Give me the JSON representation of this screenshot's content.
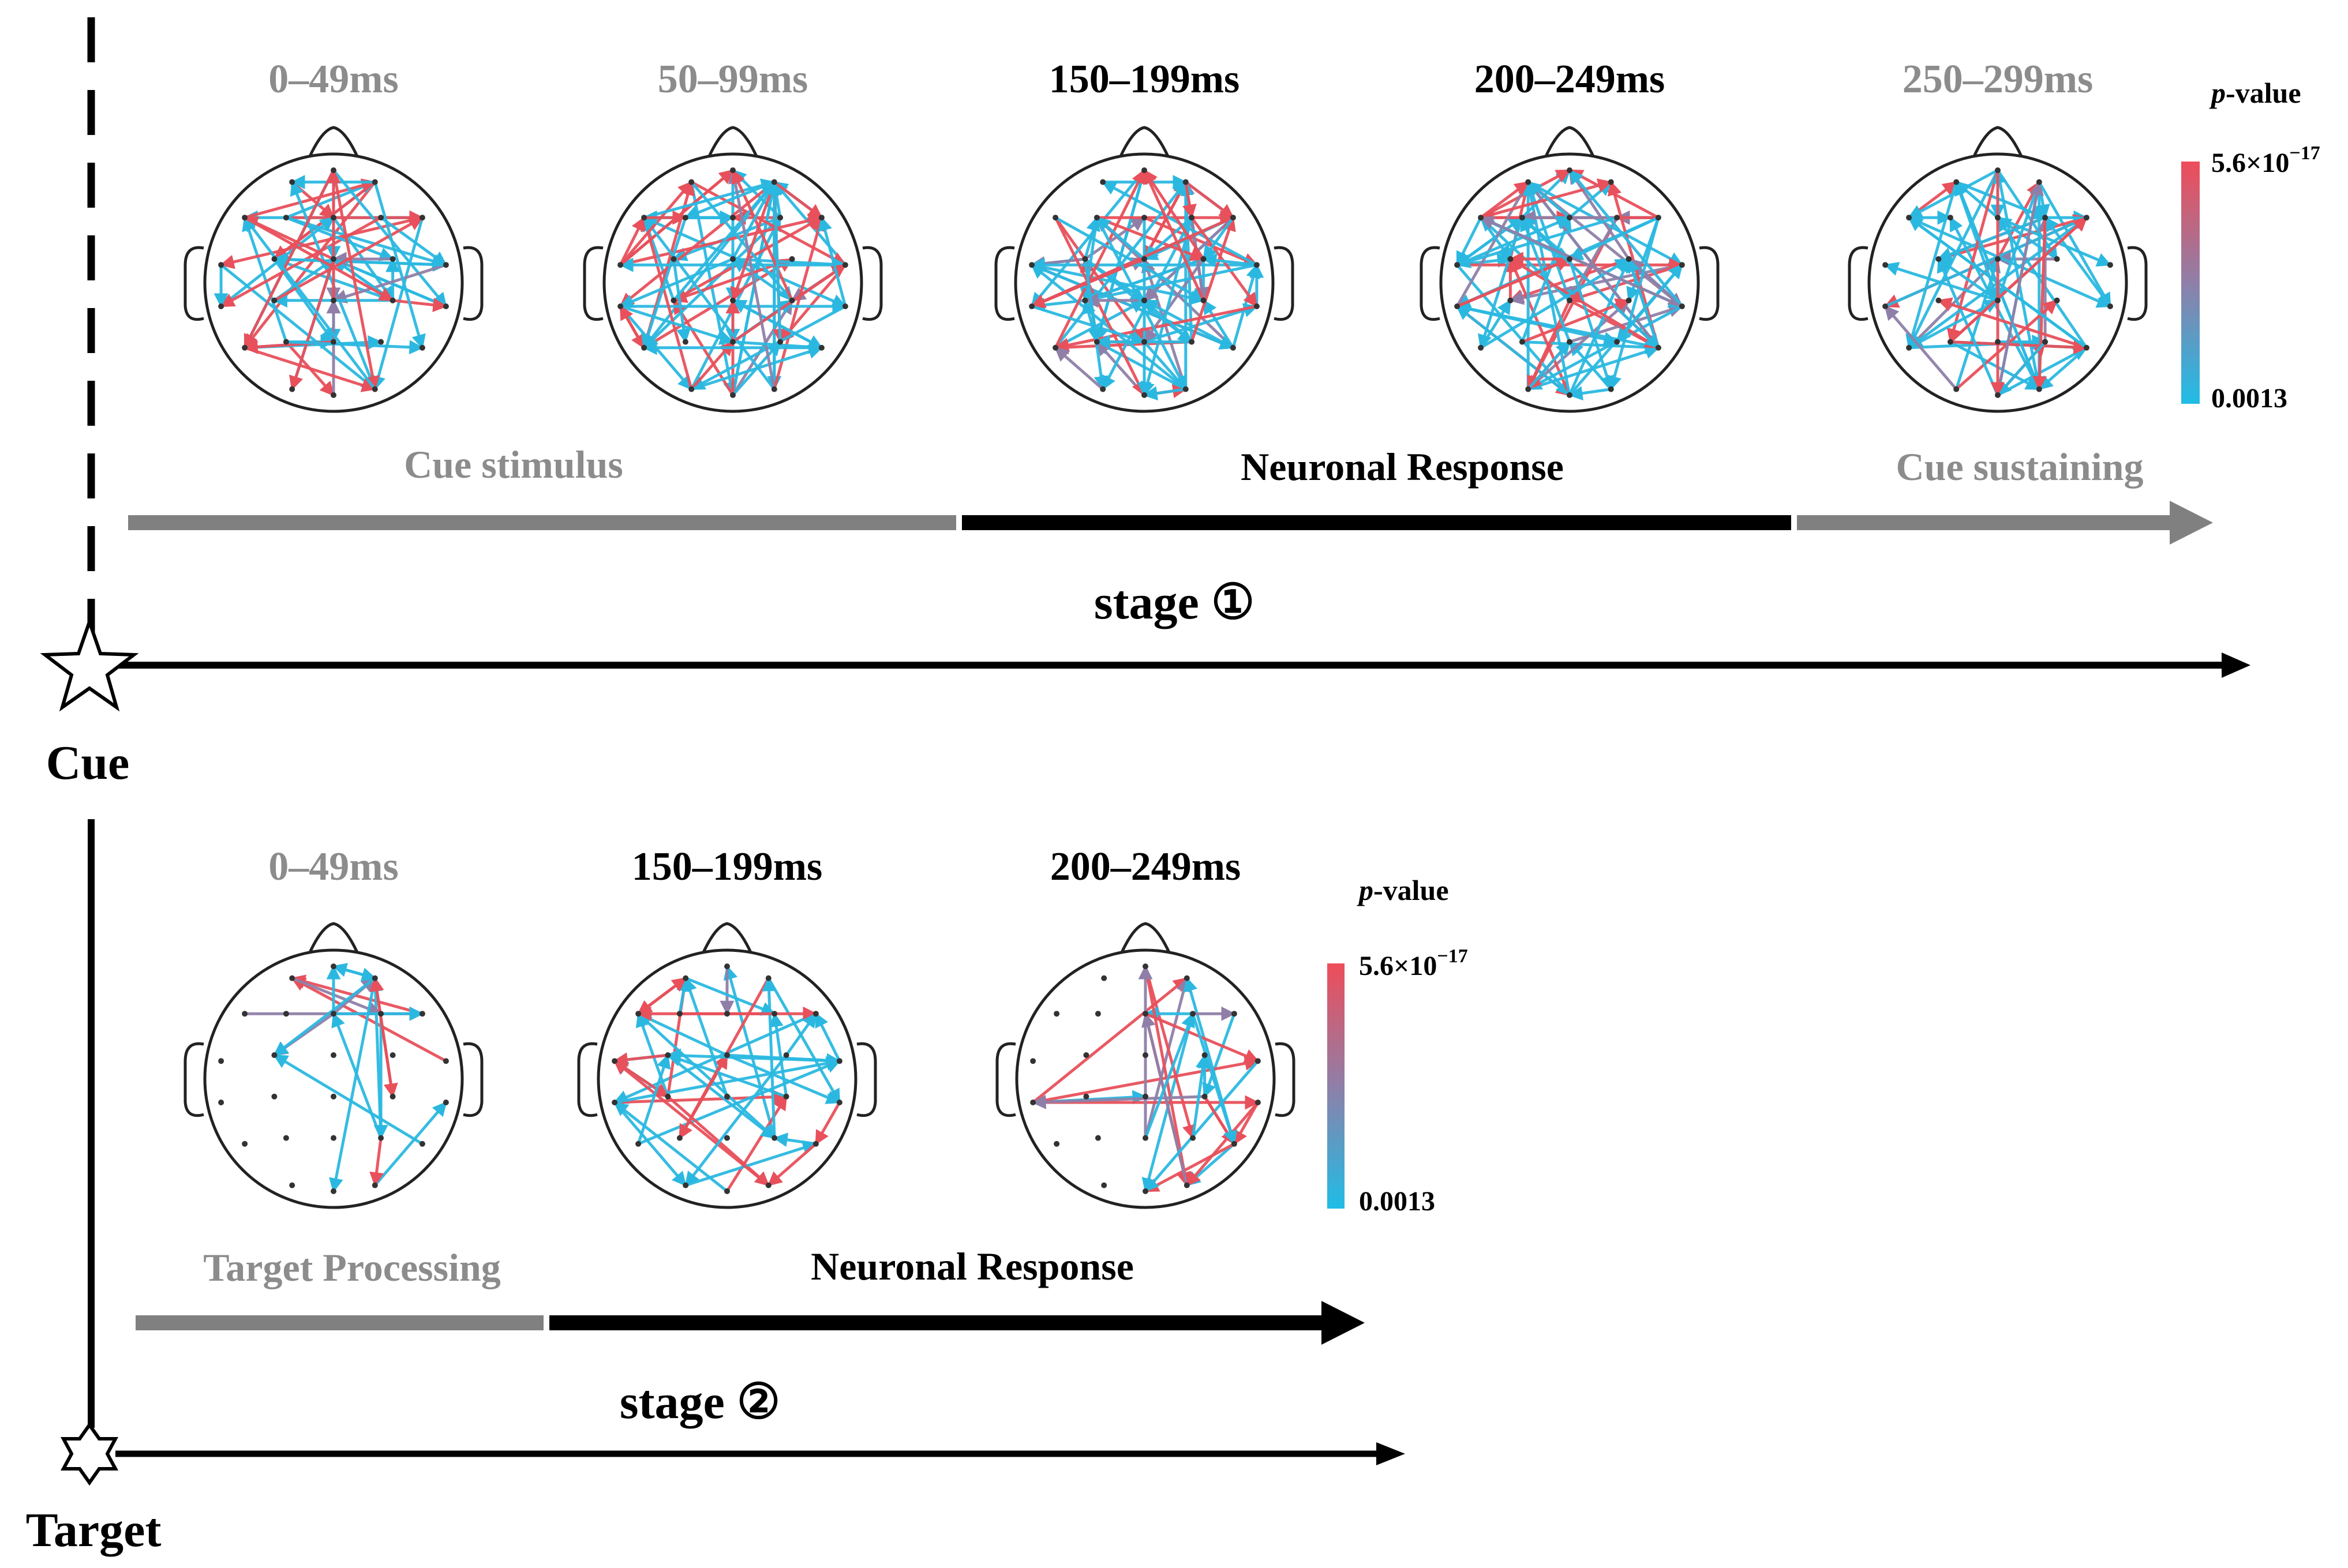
{
  "colors": {
    "red": "#e8505b",
    "blue": "#2bb8e0",
    "mid": "#8f7fa8",
    "gray": "#808080",
    "black": "#000000",
    "muted_label": "#8c8c8c"
  },
  "stage1": {
    "windows": [
      {
        "label": "0–49ms",
        "emphasis": false
      },
      {
        "label": "50–99ms",
        "emphasis": false
      },
      {
        "label": "150–199ms",
        "emphasis": true
      },
      {
        "label": "200–249ms",
        "emphasis": true
      },
      {
        "label": "250–299ms",
        "emphasis": false
      }
    ],
    "phases": [
      {
        "label": "Cue stimulus",
        "emphasis": false
      },
      {
        "label": "Neuronal Response",
        "emphasis": true
      },
      {
        "label": "Cue sustaining",
        "emphasis": false
      }
    ],
    "stage_label": "stage ①",
    "event_label": "Cue",
    "colorbar": {
      "title_italic": "p",
      "title_rest": "-value",
      "max_mantissa": "5.6×10",
      "max_exponent": "−17",
      "min_label": "0.0013"
    }
  },
  "stage2": {
    "windows": [
      {
        "label": "0–49ms",
        "emphasis": false
      },
      {
        "label": "150–199ms",
        "emphasis": true
      },
      {
        "label": "200–249ms",
        "emphasis": true
      }
    ],
    "phases": [
      {
        "label": "Target Processing",
        "emphasis": false
      },
      {
        "label": "Neuronal Response",
        "emphasis": true
      }
    ],
    "stage_label": "stage ②",
    "event_label": "Target",
    "colorbar": {
      "title_italic": "p",
      "title_rest": "-value",
      "max_mantissa": "5.6×10",
      "max_exponent": "−17",
      "min_label": "0.0013"
    }
  }
}
